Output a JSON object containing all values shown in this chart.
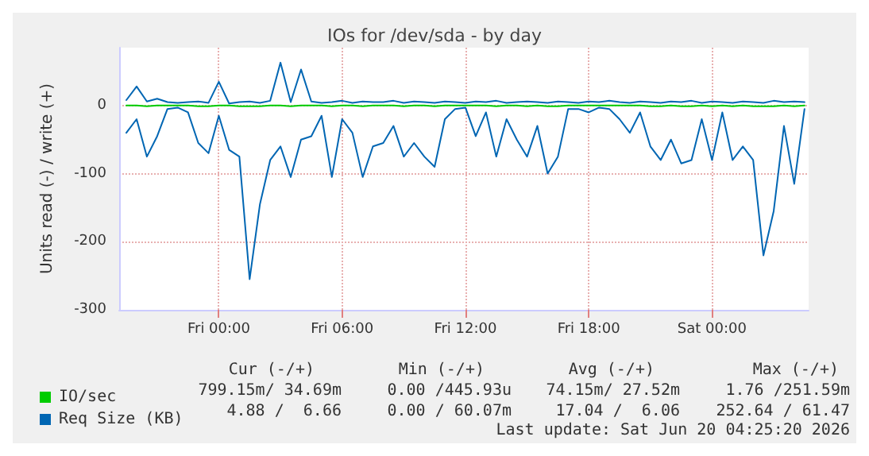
{
  "chart_data": {
    "type": "line",
    "title": "IOs for /dev/sda - by day",
    "ylabel": "Units read (-) / write (+)",
    "x": [
      "2026-06-18T19:30",
      "2026-06-18T20:00",
      "2026-06-18T20:30",
      "2026-06-18T21:00",
      "2026-06-18T21:30",
      "2026-06-18T22:00",
      "2026-06-18T22:30",
      "2026-06-18T23:00",
      "2026-06-18T23:30",
      "2026-06-19T00:00",
      "2026-06-19T00:30",
      "2026-06-19T01:00",
      "2026-06-19T01:30",
      "2026-06-19T02:00",
      "2026-06-19T02:30",
      "2026-06-19T03:00",
      "2026-06-19T03:30",
      "2026-06-19T04:00",
      "2026-06-19T04:30",
      "2026-06-19T05:00",
      "2026-06-19T05:30",
      "2026-06-19T06:00",
      "2026-06-19T06:30",
      "2026-06-19T07:00",
      "2026-06-19T07:30",
      "2026-06-19T08:00",
      "2026-06-19T08:30",
      "2026-06-19T09:00",
      "2026-06-19T09:30",
      "2026-06-19T10:00",
      "2026-06-19T10:30",
      "2026-06-19T11:00",
      "2026-06-19T11:30",
      "2026-06-19T12:00",
      "2026-06-19T12:30",
      "2026-06-19T13:00",
      "2026-06-19T13:30",
      "2026-06-19T14:00",
      "2026-06-19T14:30",
      "2026-06-19T15:00",
      "2026-06-19T15:30",
      "2026-06-19T16:00",
      "2026-06-19T16:30",
      "2026-06-19T17:00",
      "2026-06-19T17:30",
      "2026-06-19T18:00",
      "2026-06-19T18:30",
      "2026-06-19T19:00",
      "2026-06-19T19:30",
      "2026-06-19T20:00",
      "2026-06-19T20:30",
      "2026-06-19T21:00",
      "2026-06-19T21:30",
      "2026-06-19T22:00",
      "2026-06-19T22:30",
      "2026-06-19T23:00",
      "2026-06-19T23:30",
      "2026-06-20T00:00",
      "2026-06-20T00:30",
      "2026-06-20T01:00",
      "2026-06-20T01:30",
      "2026-06-20T02:00",
      "2026-06-20T02:30",
      "2026-06-20T03:00",
      "2026-06-20T03:30",
      "2026-06-20T04:00",
      "2026-06-20T04:30"
    ],
    "series": [
      {
        "name": "IO/sec",
        "color": "#00cc00",
        "values": [
          0,
          0,
          -1,
          0,
          0,
          0,
          0,
          -1,
          -1,
          0,
          0,
          -1,
          -1,
          -1,
          0,
          0,
          -1,
          0,
          0,
          0,
          -1,
          0,
          0,
          -1,
          0,
          0,
          0,
          -1,
          0,
          0,
          -1,
          0,
          0,
          0,
          0,
          0,
          -1,
          0,
          0,
          -1,
          0,
          -1,
          -1,
          0,
          0,
          0,
          0,
          0,
          0,
          0,
          0,
          -1,
          -1,
          0,
          -1,
          -1,
          0,
          -1,
          0,
          -1,
          0,
          -1,
          -1,
          -1,
          0,
          -1,
          0
        ]
      },
      {
        "name": "Req Size (KB)",
        "color": "#0066b3",
        "values": [
          -40,
          -20,
          -75,
          -45,
          -5,
          -3,
          -10,
          -55,
          -70,
          -15,
          -65,
          -75,
          -255,
          -145,
          -80,
          -60,
          -105,
          -50,
          -45,
          -15,
          -105,
          -20,
          -40,
          -105,
          -60,
          -55,
          -30,
          -75,
          -55,
          -75,
          -90,
          -20,
          -5,
          -3,
          -45,
          -10,
          -75,
          -20,
          -50,
          -75,
          -30,
          -100,
          -75,
          -5,
          -5,
          -10,
          -3,
          -5,
          -20,
          -40,
          -10,
          -60,
          -80,
          -50,
          -85,
          -80,
          -20,
          -80,
          -10,
          -80,
          -60,
          -80,
          -220,
          -155,
          -30,
          -115,
          -5
        ]
      },
      {
        "color": "#0066b3",
        "values": [
          8,
          28,
          6,
          10,
          5,
          4,
          5,
          6,
          4,
          35,
          3,
          5,
          6,
          4,
          7,
          63,
          5,
          53,
          6,
          4,
          5,
          7,
          4,
          6,
          5,
          5,
          7,
          4,
          6,
          5,
          4,
          6,
          5,
          4,
          6,
          5,
          7,
          4,
          5,
          6,
          5,
          4,
          6,
          5,
          4,
          6,
          5,
          7,
          5,
          4,
          6,
          5,
          4,
          6,
          5,
          7,
          4,
          6,
          5,
          4,
          6,
          5,
          4,
          7,
          5,
          6,
          5
        ]
      }
    ],
    "xlim": [
      "2026-06-18T19:09",
      "2026-06-20T04:42"
    ],
    "ylim": [
      -300,
      85
    ],
    "xticks": [
      {
        "value": "2026-06-19T00:00",
        "label": "Fri 00:00"
      },
      {
        "value": "2026-06-19T06:00",
        "label": "Fri 06:00"
      },
      {
        "value": "2026-06-19T12:00",
        "label": "Fri 12:00"
      },
      {
        "value": "2026-06-19T18:00",
        "label": "Fri 18:00"
      },
      {
        "value": "2026-06-20T00:00",
        "label": "Sat 00:00"
      }
    ],
    "yticks": [
      -300,
      -200,
      -100,
      0
    ],
    "grid": true,
    "legend": "bottom left",
    "marker": "none",
    "line_style": "solid",
    "annotations": [
      "Cur (-/+)",
      "Min (-/+)",
      "Avg (-/+)",
      "Max (-/+)",
      "799.15m/ 34.69m",
      "0.00 /445.93u",
      "74.15m/ 27.52m",
      "1.76 /251.59m",
      "4.88 /  6.66",
      "0.00 / 60.07m",
      "17.04 /  6.06",
      "252.64 / 61.47",
      "Last update: Sat Jun 20 04:25:20 2026"
    ]
  }
}
